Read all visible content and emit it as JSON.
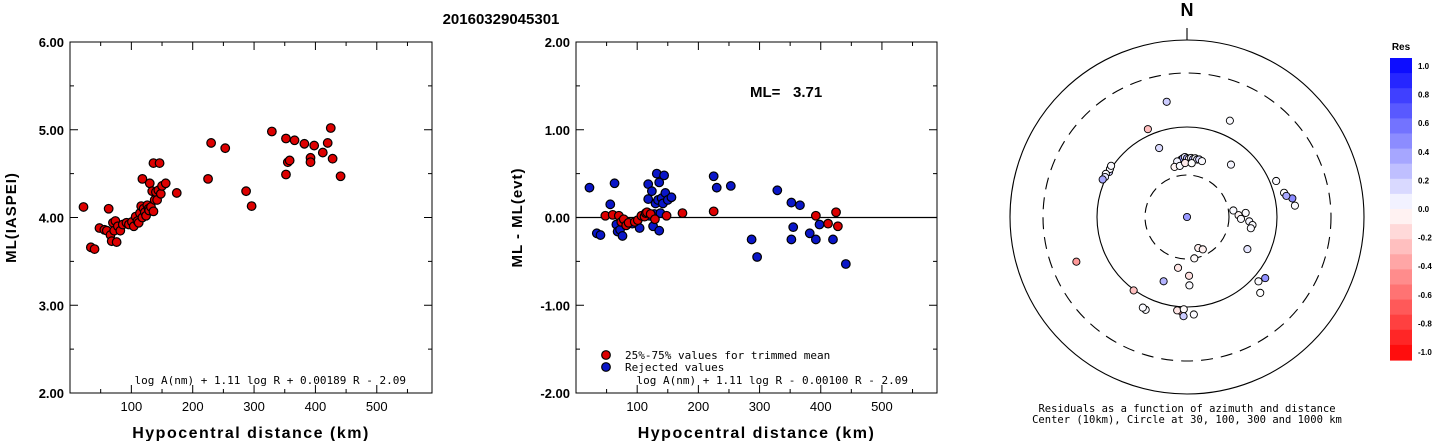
{
  "title": "20160329045301",
  "colors": {
    "kept": "#dd0000",
    "rejected": "#0a16c8",
    "res_max_positive": "#0000ff",
    "res_max_negative": "#ff0000"
  },
  "chart_data": [
    {
      "type": "scatter",
      "id": "ml-vs-distance",
      "xlabel": "Hypocentral distance (km)",
      "ylabel": "ML(IASPEI)",
      "xlim": [
        0,
        590
      ],
      "ylim": [
        2.0,
        6.0
      ],
      "xticks": [
        "100",
        "200",
        "300",
        "400",
        "500"
      ],
      "yticks": [
        "2.00",
        "3.00",
        "4.00",
        "5.00",
        "6.00"
      ],
      "formula": "log A(nm) + 1.11 log R + 0.00189 R - 2.09",
      "points": [
        [
          22,
          4.12
        ],
        [
          34,
          3.66
        ],
        [
          40,
          3.64
        ],
        [
          48,
          3.88
        ],
        [
          56,
          3.86
        ],
        [
          60,
          3.85
        ],
        [
          63,
          4.1
        ],
        [
          66,
          3.8
        ],
        [
          68,
          3.73
        ],
        [
          70,
          3.94
        ],
        [
          72,
          3.85
        ],
        [
          74,
          3.96
        ],
        [
          76,
          3.72
        ],
        [
          78,
          3.9
        ],
        [
          82,
          3.85
        ],
        [
          86,
          3.92
        ],
        [
          92,
          3.94
        ],
        [
          96,
          3.92
        ],
        [
          101,
          3.95
        ],
        [
          104,
          3.9
        ],
        [
          107,
          4.01
        ],
        [
          110,
          3.96
        ],
        [
          112,
          3.94
        ],
        [
          114,
          4.05
        ],
        [
          116,
          4.13
        ],
        [
          118,
          4.0
        ],
        [
          118,
          4.44
        ],
        [
          120,
          4.1
        ],
        [
          122,
          4.06
        ],
        [
          124,
          4.02
        ],
        [
          126,
          4.14
        ],
        [
          128,
          4.1
        ],
        [
          129,
          4.08
        ],
        [
          130,
          4.39
        ],
        [
          132,
          4.12
        ],
        [
          134,
          4.3
        ],
        [
          136,
          4.07
        ],
        [
          136,
          4.62
        ],
        [
          138,
          4.2
        ],
        [
          140,
          4.29
        ],
        [
          142,
          4.2
        ],
        [
          144,
          4.31
        ],
        [
          146,
          4.62
        ],
        [
          148,
          4.27
        ],
        [
          150,
          4.36
        ],
        [
          156,
          4.39
        ],
        [
          174,
          4.28
        ],
        [
          225,
          4.44
        ],
        [
          230,
          4.85
        ],
        [
          253,
          4.79
        ],
        [
          287,
          4.3
        ],
        [
          296,
          4.13
        ],
        [
          329,
          4.98
        ],
        [
          352,
          4.49
        ],
        [
          352,
          4.9
        ],
        [
          355,
          4.63
        ],
        [
          358,
          4.65
        ],
        [
          366,
          4.88
        ],
        [
          382,
          4.84
        ],
        [
          392,
          4.68
        ],
        [
          392,
          4.63
        ],
        [
          398,
          4.82
        ],
        [
          412,
          4.74
        ],
        [
          420,
          4.85
        ],
        [
          425,
          5.02
        ],
        [
          428,
          4.67
        ],
        [
          441,
          4.47
        ]
      ]
    },
    {
      "type": "scatter",
      "id": "residual-vs-distance",
      "xlabel": "Hypocentral distance (km)",
      "ylabel": "ML - ML(evt)",
      "xlim": [
        0,
        590
      ],
      "ylim": [
        -2.0,
        2.0
      ],
      "xticks": [
        "100",
        "200",
        "300",
        "400",
        "500"
      ],
      "yticks": [
        "-2.00",
        "-1.00",
        "0.00",
        "1.00",
        "2.00"
      ],
      "ml_label": "ML=",
      "ml_value": "3.71",
      "formula": "log A(nm) - 0.00100 R",
      "formula_full": "log A(nm) + 1.11 log R - 0.00100 R - 2.09",
      "legend": [
        {
          "label": "25%-75% values for trimmed mean",
          "color": "#dd0000"
        },
        {
          "label": "Rejected values",
          "color": "#0a16c8"
        }
      ],
      "rejected": [
        [
          22,
          0.34
        ],
        [
          34,
          -0.18
        ],
        [
          40,
          -0.2
        ],
        [
          56,
          0.15
        ],
        [
          63,
          0.39
        ],
        [
          66,
          -0.08
        ],
        [
          68,
          -0.16
        ],
        [
          72,
          -0.14
        ],
        [
          76,
          -0.21
        ],
        [
          92,
          -0.07
        ],
        [
          104,
          -0.12
        ],
        [
          110,
          0.02
        ],
        [
          118,
          0.21
        ],
        [
          118,
          0.38
        ],
        [
          120,
          0.02
        ],
        [
          124,
          0.3
        ],
        [
          126,
          -0.1
        ],
        [
          128,
          0.04
        ],
        [
          130,
          0.16
        ],
        [
          132,
          0.5
        ],
        [
          134,
          0.2
        ],
        [
          136,
          -0.15
        ],
        [
          136,
          0.4
        ],
        [
          138,
          0.05
        ],
        [
          140,
          0.22
        ],
        [
          142,
          0.16
        ],
        [
          144,
          0.48
        ],
        [
          146,
          0.28
        ],
        [
          150,
          0.2
        ],
        [
          156,
          0.23
        ],
        [
          225,
          0.47
        ],
        [
          230,
          0.34
        ],
        [
          253,
          0.36
        ],
        [
          287,
          -0.25
        ],
        [
          296,
          -0.45
        ],
        [
          329,
          0.31
        ],
        [
          352,
          -0.25
        ],
        [
          352,
          0.17
        ],
        [
          355,
          -0.11
        ],
        [
          366,
          0.14
        ],
        [
          382,
          -0.18
        ],
        [
          392,
          -0.25
        ],
        [
          398,
          -0.08
        ],
        [
          420,
          -0.25
        ],
        [
          441,
          -0.53
        ]
      ],
      "kept": [
        [
          48,
          0.02
        ],
        [
          60,
          0.03
        ],
        [
          70,
          0.02
        ],
        [
          74,
          -0.05
        ],
        [
          78,
          -0.02
        ],
        [
          82,
          -0.09
        ],
        [
          86,
          -0.06
        ],
        [
          96,
          -0.05
        ],
        [
          101,
          -0.03
        ],
        [
          107,
          0.02
        ],
        [
          112,
          0.01
        ],
        [
          114,
          0.05
        ],
        [
          116,
          0.06
        ],
        [
          122,
          0.04
        ],
        [
          129,
          -0.02
        ],
        [
          148,
          0.02
        ],
        [
          174,
          0.05
        ],
        [
          225,
          0.07
        ],
        [
          392,
          0.02
        ],
        [
          412,
          -0.07
        ],
        [
          425,
          0.06
        ],
        [
          428,
          -0.1
        ]
      ]
    },
    {
      "type": "polar-scatter",
      "id": "azimuth-residuals",
      "north_label": "N",
      "caption_line1": "Residuals as a function of azimuth and distance",
      "caption_line2": "Center (10km), Circle at 30, 100, 300 and 1000 km",
      "colorbar_title": "Res",
      "colorbar_ticks": [
        "1.0",
        "0.8",
        "0.6",
        "0.4",
        "0.2",
        "0.0",
        "-0.2",
        "-0.4",
        "-0.6",
        "-0.8",
        "-1.0"
      ],
      "rings_km": [
        30,
        100,
        300,
        1000
      ],
      "stations": [
        [
          354,
          165,
          0.16
        ],
        [
          356,
          170,
          0.4
        ],
        [
          358,
          175,
          0.1
        ],
        [
          0,
          170,
          0.3
        ],
        [
          2,
          168,
          -0.05
        ],
        [
          4,
          172,
          0.05
        ],
        [
          6,
          168,
          0.28
        ],
        [
          8,
          172,
          0.02
        ],
        [
          10,
          168,
          0.1
        ],
        [
          12,
          170,
          0.15
        ],
        [
          15,
          166,
          0.02
        ],
        [
          350,
          160,
          0.05
        ],
        [
          346,
          140,
          -0.04
        ],
        [
          352,
          140,
          0.02
        ],
        [
          358,
          150,
          -0.08
        ],
        [
          5,
          150,
          0.0
        ],
        [
          338,
          235,
          0.14
        ],
        [
          336,
          380,
          -0.25
        ],
        [
          350,
          650,
          0.2
        ],
        [
          24,
          500,
          0.02
        ],
        [
          300,
          300,
          0.2
        ],
        [
          302,
          310,
          0.02
        ],
        [
          304,
          320,
          0.02
        ],
        [
          298,
          325,
          0.02
        ],
        [
          296,
          315,
          0.1
        ],
        [
          294,
          330,
          0.34
        ],
        [
          40,
          210,
          0.04
        ],
        [
          94,
          185,
          0.04
        ],
        [
          97,
          200,
          0.02
        ],
        [
          100,
          195,
          0.02
        ],
        [
          82,
          120,
          0.02
        ],
        [
          88,
          140,
          -0.04
        ],
        [
          92,
          150,
          0.02
        ],
        [
          86,
          170,
          0.02
        ],
        [
          76,
          430,
          0.0
        ],
        [
          80,
          520,
          0.46
        ],
        [
          84,
          540,
          0.02
        ],
        [
          78,
          450,
          0.34
        ],
        [
          68,
          380,
          0.02
        ],
        [
          118,
          210,
          0.1
        ],
        [
          128,
          420,
          0.43
        ],
        [
          132,
          380,
          0.02
        ],
        [
          136,
          500,
          0.0
        ],
        [
          160,
          85,
          -0.06
        ],
        [
          154,
          90,
          -0.06
        ],
        [
          170,
          100,
          -0.02
        ],
        [
          178,
          170,
          -0.12
        ],
        [
          178,
          210,
          0.02
        ],
        [
          183,
          370,
          -0.36
        ],
        [
          186,
          350,
          -0.1
        ],
        [
          182,
          330,
          -0.02
        ],
        [
          190,
          140,
          -0.1
        ],
        [
          174,
          30,
          0.4
        ],
        [
          200,
          210,
          0.3
        ],
        [
          204,
          450,
          0.02
        ],
        [
          206,
          440,
          0.02
        ],
        [
          216,
          310,
          -0.25
        ],
        [
          248,
          680,
          -0.4
        ],
        [
          182,
          420,
          0.2
        ],
        [
          176,
          400,
          0.02
        ]
      ]
    }
  ]
}
